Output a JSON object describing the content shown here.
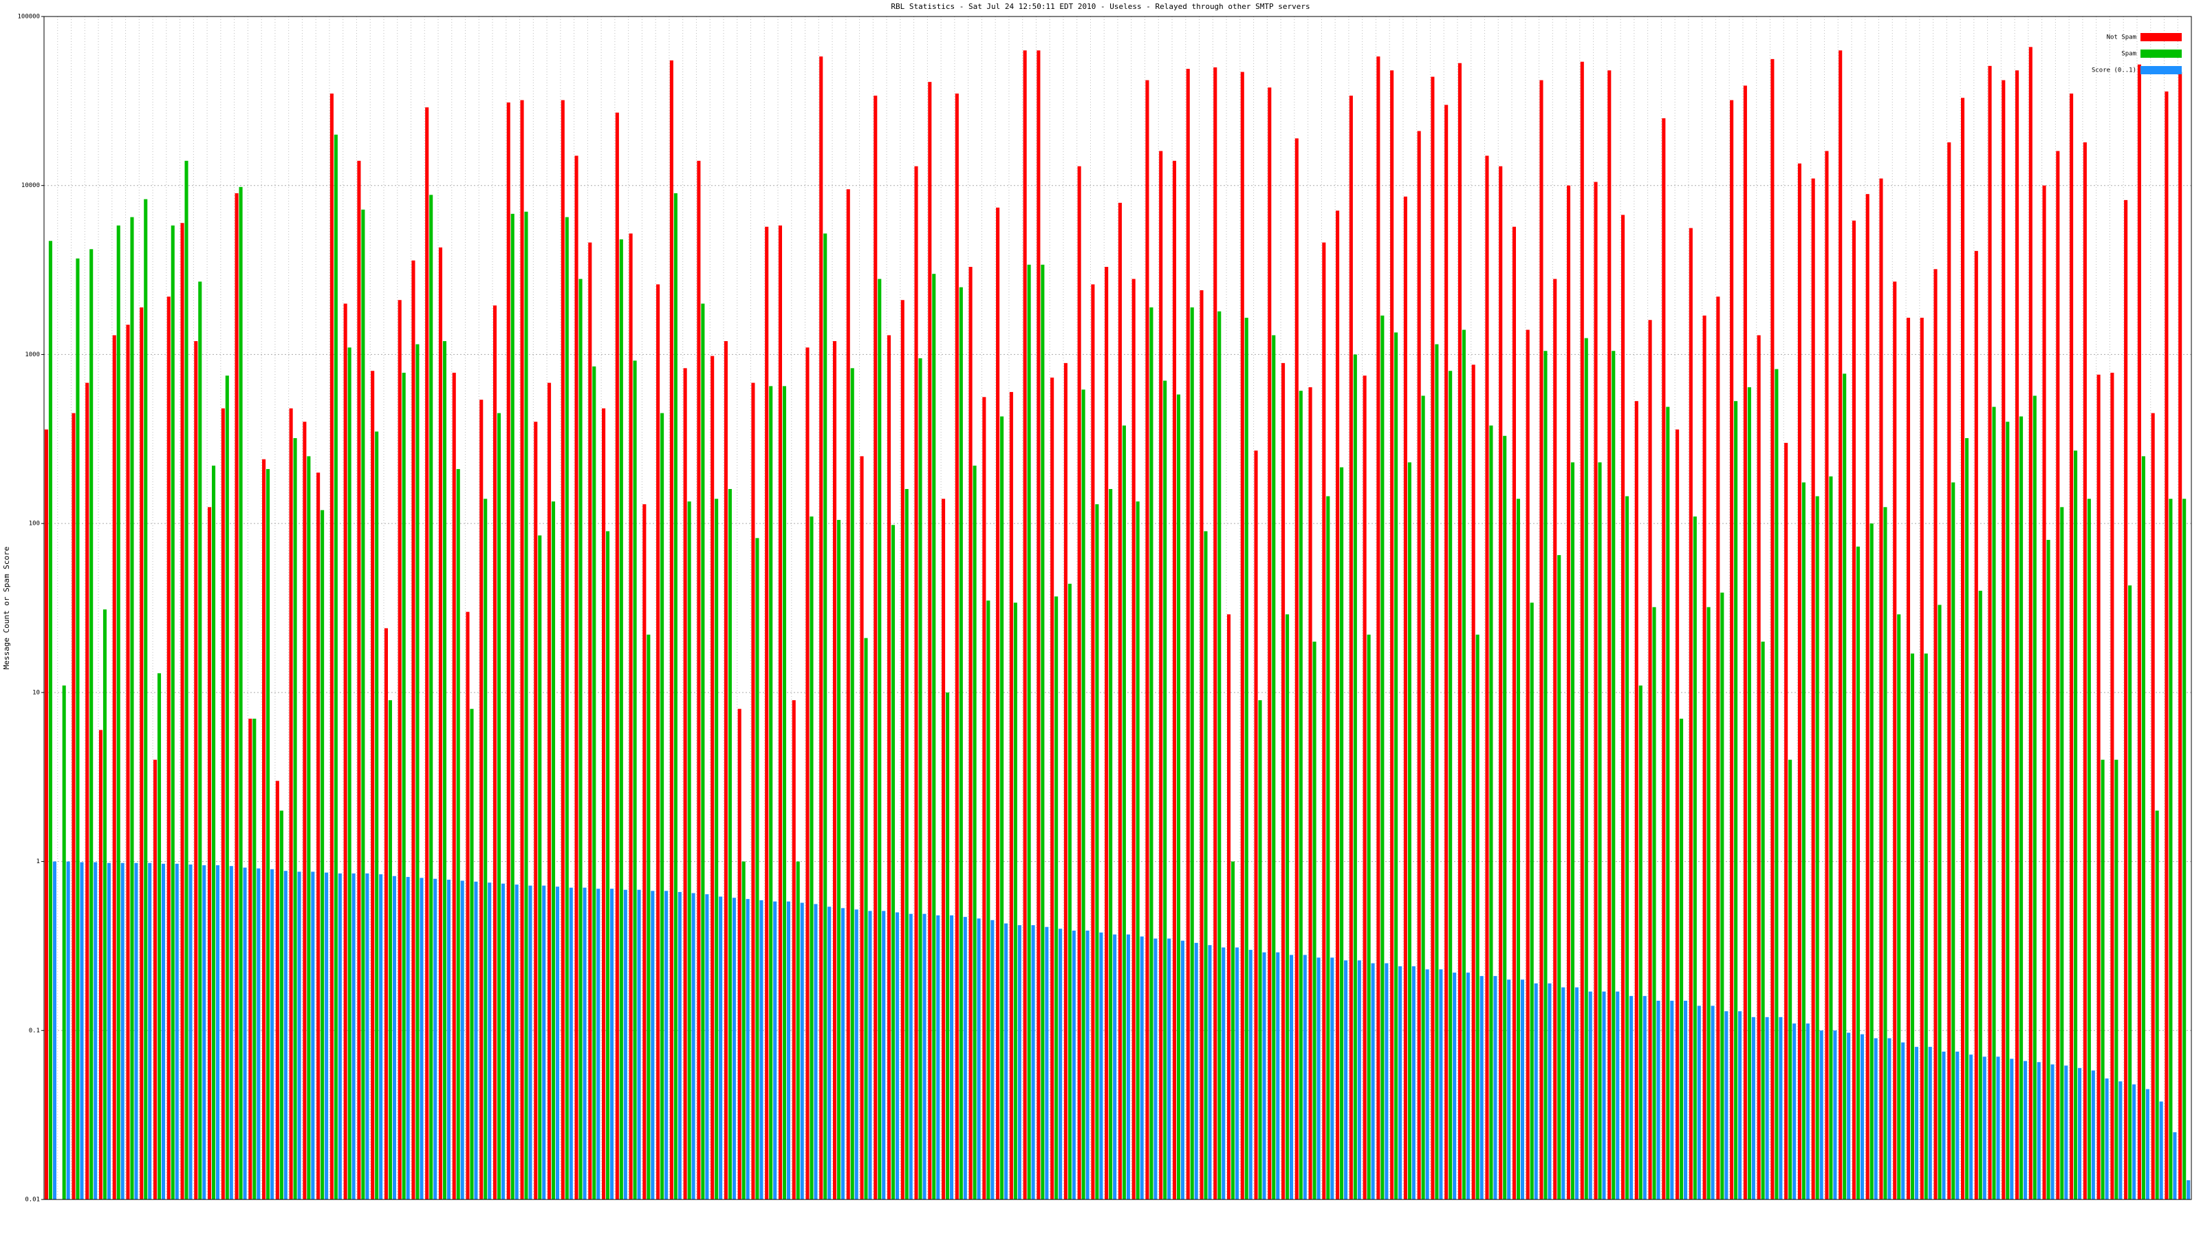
{
  "chart_data": {
    "type": "bar",
    "title": "RBL Statistics - Sat Jul 24 12:50:11 EDT 2010 - Useless - Relayed through other SMTP servers",
    "y_label": "Message Count or Spam Score",
    "log_scale": true,
    "grid": true,
    "legend_position": "top-right",
    "ylim": [
      0.01,
      100000
    ],
    "yticks": [
      0.01,
      0.1,
      1,
      10,
      100,
      1000,
      10000,
      100000
    ],
    "series": [
      {
        "name": "Not Spam",
        "color": "#ff0000",
        "values": [
          360,
          null,
          450,
          680,
          6,
          1300,
          1500,
          1900,
          4,
          2200,
          6000,
          1200,
          125,
          480,
          9000,
          7,
          240,
          3,
          480,
          400,
          200,
          35000,
          2000,
          14000,
          800,
          24,
          2100,
          3600,
          29000,
          4300,
          780,
          30,
          540,
          1950,
          31000,
          32000,
          400,
          680,
          32000,
          15000,
          4600,
          480,
          27000,
          5200,
          130,
          2600,
          55000,
          830,
          14000,
          980,
          1200,
          8,
          680,
          5700,
          5800,
          9,
          1100,
          58000,
          1200,
          9500,
          250,
          34000,
          1300,
          2100,
          13000,
          41000,
          140,
          35000,
          3300,
          560,
          7400,
          600,
          63000,
          63000,
          730,
          890,
          13000,
          2600,
          3300,
          7900,
          2800,
          42000,
          16000,
          14000,
          49000,
          2400,
          50000,
          29,
          47000,
          270,
          38000,
          890,
          19000,
          640,
          4600,
          7100,
          34000,
          750,
          58000,
          48000,
          8600,
          21000,
          44000,
          30000,
          53000,
          870,
          15000,
          13000,
          5700,
          1400,
          42000,
          2800,
          10000,
          54000,
          10500,
          48000,
          6700,
          530,
          1600,
          25000,
          360,
          5600,
          1700,
          2200,
          32000,
          39000,
          1300,
          56000,
          300,
          13500,
          11000,
          16000,
          63000,
          6200,
          8900,
          11000,
          2700,
          1650,
          1650,
          3200,
          18000,
          33000,
          4100,
          51000,
          42000,
          48000,
          66000,
          10000,
          16000,
          35000,
          18000,
          760,
          780,
          8200,
          52000,
          450,
          36000,
          47000
        ]
      },
      {
        "name": "Spam",
        "color": "#00c000",
        "values": [
          4700,
          11,
          3700,
          4200,
          31,
          5800,
          6500,
          8300,
          13,
          5800,
          14000,
          2700,
          220,
          750,
          9800,
          7,
          210,
          2,
          320,
          250,
          120,
          20000,
          1100,
          7200,
          350,
          9,
          780,
          1150,
          8800,
          1200,
          210,
          8,
          140,
          450,
          6800,
          7000,
          85,
          135,
          6500,
          2800,
          850,
          90,
          4800,
          920,
          22,
          450,
          9000,
          135,
          2000,
          140,
          160,
          1,
          82,
          650,
          650,
          1,
          110,
          5200,
          105,
          830,
          21,
          2800,
          98,
          160,
          950,
          3000,
          10,
          2500,
          220,
          35,
          430,
          34,
          3400,
          3400,
          37,
          44,
          620,
          130,
          160,
          380,
          135,
          1900,
          700,
          580,
          1900,
          90,
          1800,
          1,
          1650,
          9,
          1300,
          29,
          610,
          20,
          145,
          215,
          1000,
          22,
          1700,
          1350,
          230,
          570,
          1150,
          800,
          1400,
          22,
          380,
          330,
          140,
          34,
          1050,
          65,
          230,
          1250,
          230,
          1050,
          145,
          11,
          32,
          490,
          7,
          110,
          32,
          39,
          530,
          640,
          20,
          820,
          4,
          175,
          145,
          190,
          770,
          73,
          100,
          125,
          29,
          17,
          17,
          33,
          175,
          320,
          40,
          490,
          400,
          430,
          570,
          80,
          125,
          270,
          140,
          4,
          4,
          43,
          250,
          2,
          140,
          140
        ]
      },
      {
        "name": "Score (0..1)",
        "color": "#1e90ff",
        "values": [
          1.0,
          1.0,
          0.99,
          0.99,
          0.98,
          0.98,
          0.98,
          0.98,
          0.97,
          0.97,
          0.96,
          0.95,
          0.95,
          0.94,
          0.92,
          0.91,
          0.9,
          0.88,
          0.87,
          0.87,
          0.86,
          0.85,
          0.85,
          0.85,
          0.84,
          0.82,
          0.81,
          0.8,
          0.79,
          0.78,
          0.77,
          0.76,
          0.75,
          0.74,
          0.73,
          0.72,
          0.72,
          0.71,
          0.7,
          0.7,
          0.69,
          0.69,
          0.68,
          0.68,
          0.67,
          0.67,
          0.66,
          0.65,
          0.64,
          0.62,
          0.61,
          0.6,
          0.59,
          0.58,
          0.58,
          0.57,
          0.56,
          0.54,
          0.53,
          0.52,
          0.51,
          0.51,
          0.5,
          0.49,
          0.49,
          0.48,
          0.48,
          0.47,
          0.46,
          0.45,
          0.43,
          0.42,
          0.42,
          0.41,
          0.4,
          0.39,
          0.39,
          0.38,
          0.37,
          0.37,
          0.36,
          0.35,
          0.35,
          0.34,
          0.33,
          0.32,
          0.31,
          0.31,
          0.3,
          0.29,
          0.29,
          0.28,
          0.28,
          0.27,
          0.27,
          0.26,
          0.26,
          0.25,
          0.25,
          0.24,
          0.24,
          0.23,
          0.23,
          0.22,
          0.22,
          0.21,
          0.21,
          0.2,
          0.2,
          0.19,
          0.19,
          0.18,
          0.18,
          0.17,
          0.17,
          0.17,
          0.16,
          0.16,
          0.15,
          0.15,
          0.15,
          0.14,
          0.14,
          0.13,
          0.13,
          0.12,
          0.12,
          0.12,
          0.11,
          0.11,
          0.1,
          0.1,
          0.097,
          0.095,
          0.09,
          0.09,
          0.085,
          0.08,
          0.08,
          0.075,
          0.075,
          0.072,
          0.07,
          0.07,
          0.068,
          0.066,
          0.065,
          0.063,
          0.062,
          0.06,
          0.058,
          0.052,
          0.05,
          0.048,
          0.045,
          0.038,
          0.025,
          0.013
        ]
      }
    ]
  }
}
